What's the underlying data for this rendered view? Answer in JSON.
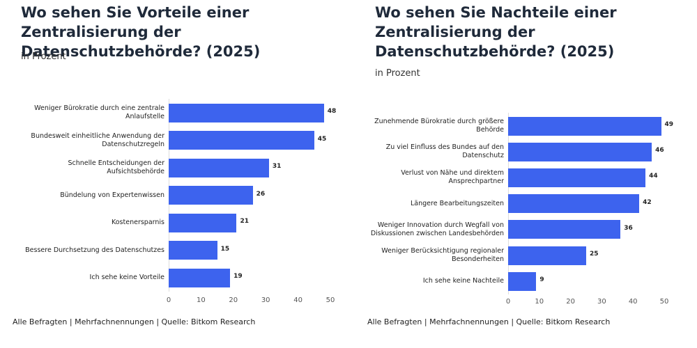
{
  "chart_data": [
    {
      "type": "bar",
      "orientation": "horizontal",
      "title": "Wo sehen Sie Vorteile einer Zentralisierung der Datenschutzbehörde? (2025)",
      "subtitle": "in Prozent",
      "categories": [
        "Weniger Bürokratie durch eine zentrale Anlaufstelle",
        "Bundesweit einheitliche Anwendung der Datenschutzregeln",
        "Schnelle Entscheidungen der Aufsichtsbehörde",
        "Bündelung von Expertenwissen",
        "Kostenersparnis",
        "Bessere Durchsetzung des Datenschutzes",
        "Ich sehe keine Vorteile"
      ],
      "values": [
        48,
        45,
        31,
        26,
        21,
        15,
        19
      ],
      "color": "#3d63ee",
      "xlim": [
        0,
        50
      ],
      "xticks": [
        0,
        10,
        20,
        30,
        40,
        50
      ],
      "source": "Alle Befragten | Mehrfachnennungen | Quelle: Bitkom Research"
    },
    {
      "type": "bar",
      "orientation": "horizontal",
      "title": "Wo sehen Sie Nachteile einer Zentralisierung der Datenschutzbehörde? (2025)",
      "subtitle": "in Prozent",
      "categories": [
        "Zunehmende Bürokratie durch größere Behörde",
        "Zu viel Einfluss des Bundes auf den Datenschutz",
        "Verlust von Nähe und direktem Ansprechpartner",
        "Längere Bearbeitungszeiten",
        "Weniger Innovation durch Wegfall von Diskussionen zwischen Landesbehörden",
        "Weniger Berücksichtigung regionaler Besonderheiten",
        "Ich sehe keine Nachteile"
      ],
      "values": [
        49,
        46,
        44,
        42,
        36,
        25,
        9
      ],
      "color": "#3d63ee",
      "xlim": [
        0,
        50
      ],
      "xticks": [
        0,
        10,
        20,
        30,
        40,
        50
      ],
      "source": "Alle Befragten | Mehrfachnennungen | Quelle: Bitkom Research"
    }
  ]
}
